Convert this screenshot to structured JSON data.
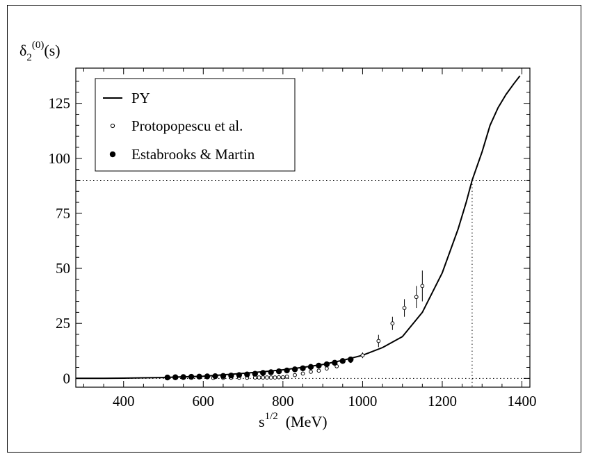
{
  "chart_data": {
    "type": "line",
    "ylabel": {
      "main": "δ",
      "sub": "2",
      "sup": "(0)",
      "tail": "(s)"
    },
    "xlabel": {
      "main": "s",
      "sup": "1/2",
      "tail": "  (MeV)"
    },
    "xlim": [
      280,
      1420
    ],
    "ylim": [
      -4,
      141
    ],
    "xticks": [
      400,
      600,
      800,
      1000,
      1200,
      1400
    ],
    "yticks": [
      0,
      25,
      50,
      75,
      100,
      125
    ],
    "grid": false,
    "legend_position": "top-left",
    "reference_lines": {
      "y": [
        0,
        90
      ],
      "x": 1275
    },
    "series": [
      {
        "name": "PY",
        "style": "solid-line",
        "x": [
          280,
          350,
          400,
          450,
          500,
          550,
          600,
          650,
          700,
          750,
          800,
          850,
          900,
          950,
          1000,
          1050,
          1100,
          1150,
          1200,
          1240,
          1260,
          1275,
          1300,
          1320,
          1340,
          1360,
          1380,
          1395
        ],
        "y": [
          0,
          0.05,
          0.1,
          0.25,
          0.4,
          0.7,
          1.0,
          1.6,
          2.3,
          3.0,
          3.9,
          5.0,
          6.3,
          8.2,
          10.5,
          14.0,
          19.0,
          30.0,
          48.0,
          68.0,
          80.0,
          90.0,
          103.0,
          115.0,
          123.0,
          129.0,
          134.0,
          137.5
        ]
      },
      {
        "name": "Protopopescu et al.",
        "style": "open-circle",
        "x": [
          625,
          650,
          670,
          690,
          710,
          730,
          740,
          750,
          760,
          770,
          780,
          790,
          800,
          810,
          830,
          850,
          870,
          890,
          910,
          935,
          970,
          1000,
          1040,
          1075,
          1105,
          1135,
          1150
        ],
        "y": [
          0.2,
          0.2,
          0.3,
          0.3,
          0.3,
          0.4,
          0.4,
          0.4,
          0.4,
          0.4,
          0.4,
          0.5,
          0.5,
          0.8,
          1.5,
          2.2,
          3.0,
          3.5,
          4.5,
          5.5,
          8.0,
          10.5,
          17.0,
          25.0,
          32.0,
          37.0,
          42.0
        ],
        "err": [
          0.1,
          0.1,
          0.1,
          0.1,
          0.1,
          0.1,
          0.1,
          0.1,
          0.1,
          0.1,
          0.1,
          0.1,
          0.2,
          0.3,
          0.4,
          0.5,
          0.5,
          0.6,
          0.7,
          0.8,
          1.0,
          1.3,
          2.8,
          3.0,
          4.0,
          5.0,
          7.0
        ]
      },
      {
        "name": "Estabrooks & Martin",
        "style": "filled-circle",
        "x": [
          510,
          530,
          550,
          570,
          590,
          610,
          630,
          650,
          670,
          690,
          710,
          730,
          750,
          770,
          790,
          810,
          830,
          850,
          870,
          890,
          910,
          930,
          950,
          970
        ],
        "y": [
          0.4,
          0.5,
          0.6,
          0.7,
          0.8,
          0.9,
          1.0,
          1.1,
          1.3,
          1.5,
          1.8,
          2.1,
          2.5,
          2.8,
          3.2,
          3.6,
          4.1,
          4.6,
          5.2,
          5.8,
          6.4,
          7.1,
          7.9,
          8.6
        ],
        "err": [
          0.1,
          0.1,
          0.1,
          0.1,
          0.1,
          0.1,
          0.1,
          0.1,
          0.1,
          0.1,
          0.1,
          0.1,
          0.1,
          0.1,
          0.1,
          0.1,
          0.1,
          0.1,
          0.1,
          0.1,
          0.1,
          0.1,
          0.1,
          0.1
        ]
      }
    ]
  }
}
